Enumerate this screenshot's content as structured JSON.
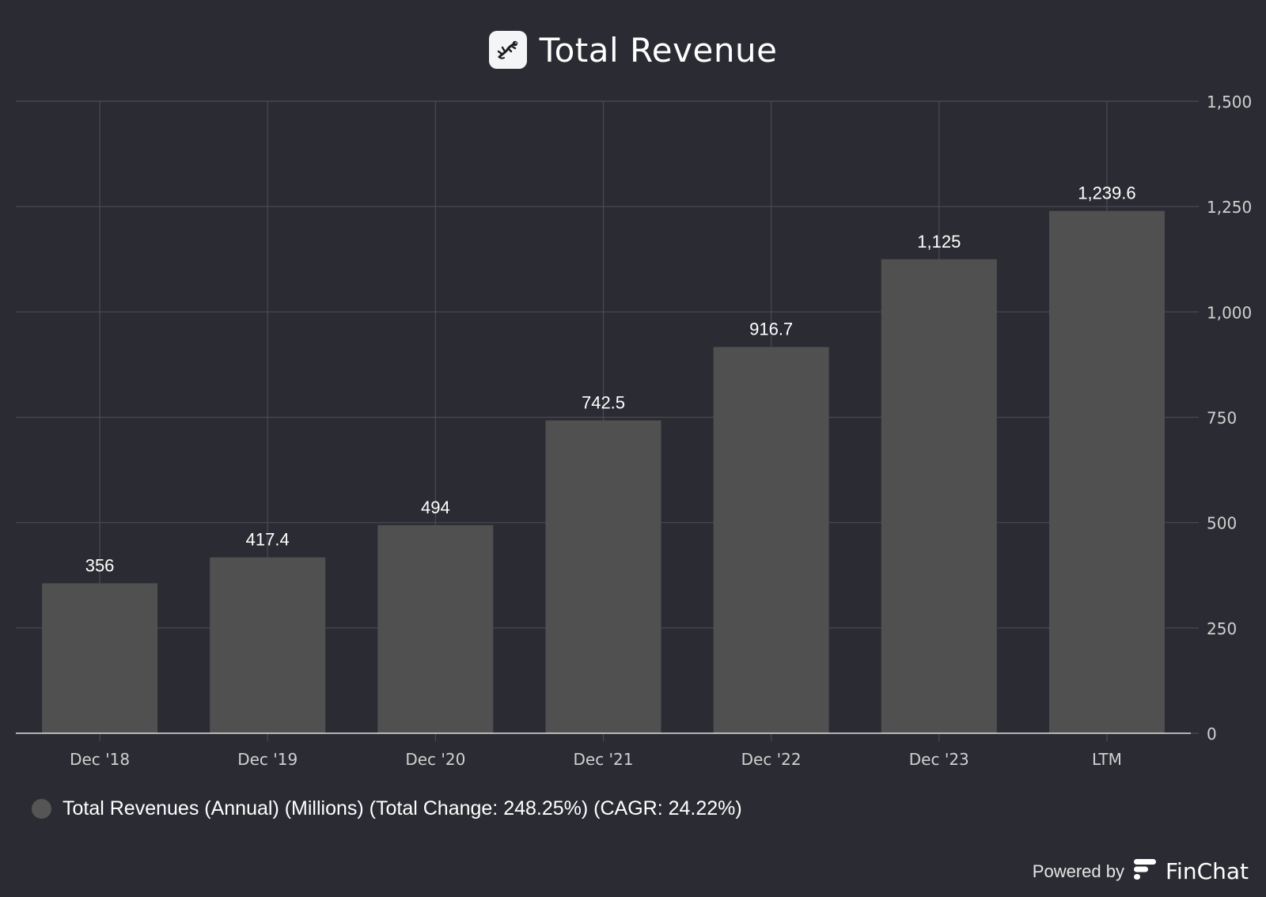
{
  "header": {
    "title": "Total Revenue",
    "logo_icon": "company-logo-icon"
  },
  "chart_data": {
    "type": "bar",
    "title": "Total Revenue",
    "categories": [
      "Dec '18",
      "Dec '19",
      "Dec '20",
      "Dec '21",
      "Dec '22",
      "Dec '23",
      "LTM"
    ],
    "values": [
      356,
      417.4,
      494,
      742.5,
      916.7,
      1125,
      1239.6
    ],
    "data_labels": [
      "356",
      "417.4",
      "494",
      "742.5",
      "916.7",
      "1,125",
      "1,239.6"
    ],
    "y_ticks": [
      0,
      250,
      500,
      750,
      1000,
      1250,
      1500
    ],
    "y_tick_labels": [
      "0",
      "250",
      "500",
      "750",
      "1,000",
      "1,250",
      "1,500"
    ],
    "ylim": [
      0,
      1500
    ],
    "y_axis_side": "right",
    "grid": true,
    "bar_color": "#505050",
    "grid_color": "#4a4b52",
    "legend_placement": "bottom-left"
  },
  "legend": {
    "label": "Total Revenues (Annual) (Millions) (Total Change: 248.25%) (CAGR: 24.22%)",
    "color": "#555555"
  },
  "footer": {
    "powered_by": "Powered by",
    "brand": "FinChat",
    "brand_icon": "finchat-logo-icon"
  },
  "colors": {
    "background": "#2b2c33",
    "text": "#ffffff",
    "axis_text": "#d0d0d0"
  }
}
